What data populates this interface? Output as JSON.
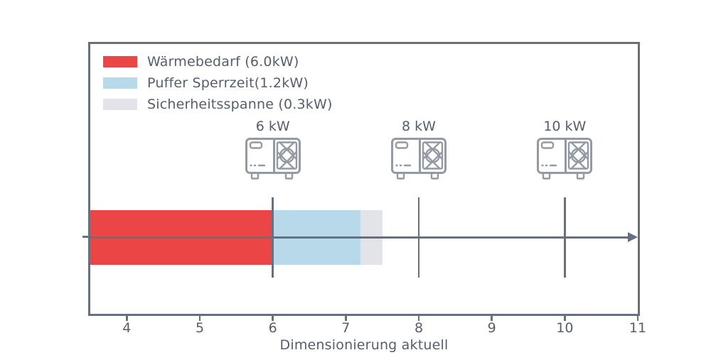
{
  "chart_data": {
    "type": "bar",
    "orientation": "horizontal",
    "title": "",
    "xlabel": "Dimensionierung aktuell",
    "ylabel": "",
    "xlim": [
      3.5,
      11
    ],
    "x_ticks": [
      4,
      5,
      6,
      7,
      8,
      9,
      10,
      11
    ],
    "grid": false,
    "legend_position": "upper left",
    "bar": {
      "baseline": 3.5,
      "segments": [
        {
          "name": "Wärmebedarf",
          "label": "Wärmebedarf (6.0kW)",
          "value_kw": 6.0,
          "from": 3.5,
          "to": 6.0,
          "color": "#ec4545"
        },
        {
          "name": "Puffer Sperrzeit",
          "label": "Puffer Sperrzeit(1.2kW)",
          "value_kw": 1.2,
          "from": 6.0,
          "to": 7.2,
          "color": "#b7d9ea"
        },
        {
          "name": "Sicherheitsspanne",
          "label": "Sicherheitsspanne (0.3kW)",
          "value_kw": 0.3,
          "from": 7.2,
          "to": 7.5,
          "color": "#e3e4e9"
        }
      ]
    },
    "markers": [
      {
        "value": 6,
        "label": "6 kW",
        "icon": "heat-pump-icon"
      },
      {
        "value": 8,
        "label": "8 kW",
        "icon": "heat-pump-icon"
      },
      {
        "value": 10,
        "label": "10 kW",
        "icon": "heat-pump-icon"
      }
    ],
    "colors": {
      "axis_line": "#67707e",
      "text": "#545e6c",
      "icon_stroke": "#949aa3",
      "background": "#ffffff"
    }
  }
}
